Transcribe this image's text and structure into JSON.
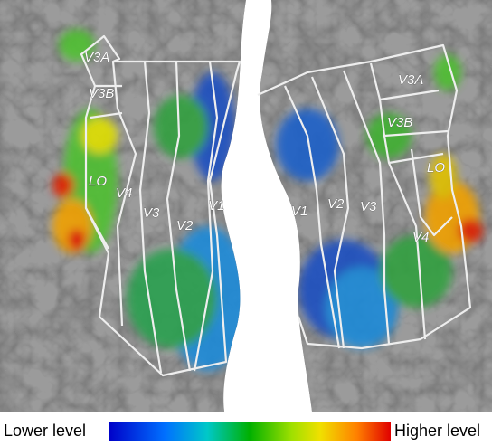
{
  "left_hemisphere": {
    "labels": [
      "V3A",
      "V3B",
      "LO",
      "V4",
      "V3",
      "V2",
      "V1"
    ]
  },
  "right_hemisphere": {
    "labels": [
      "V1",
      "V2",
      "V3",
      "V4",
      "LO",
      "V3B",
      "V3A"
    ]
  },
  "colorbar": {
    "low_label": "Lower level",
    "high_label": "Higher level"
  }
}
